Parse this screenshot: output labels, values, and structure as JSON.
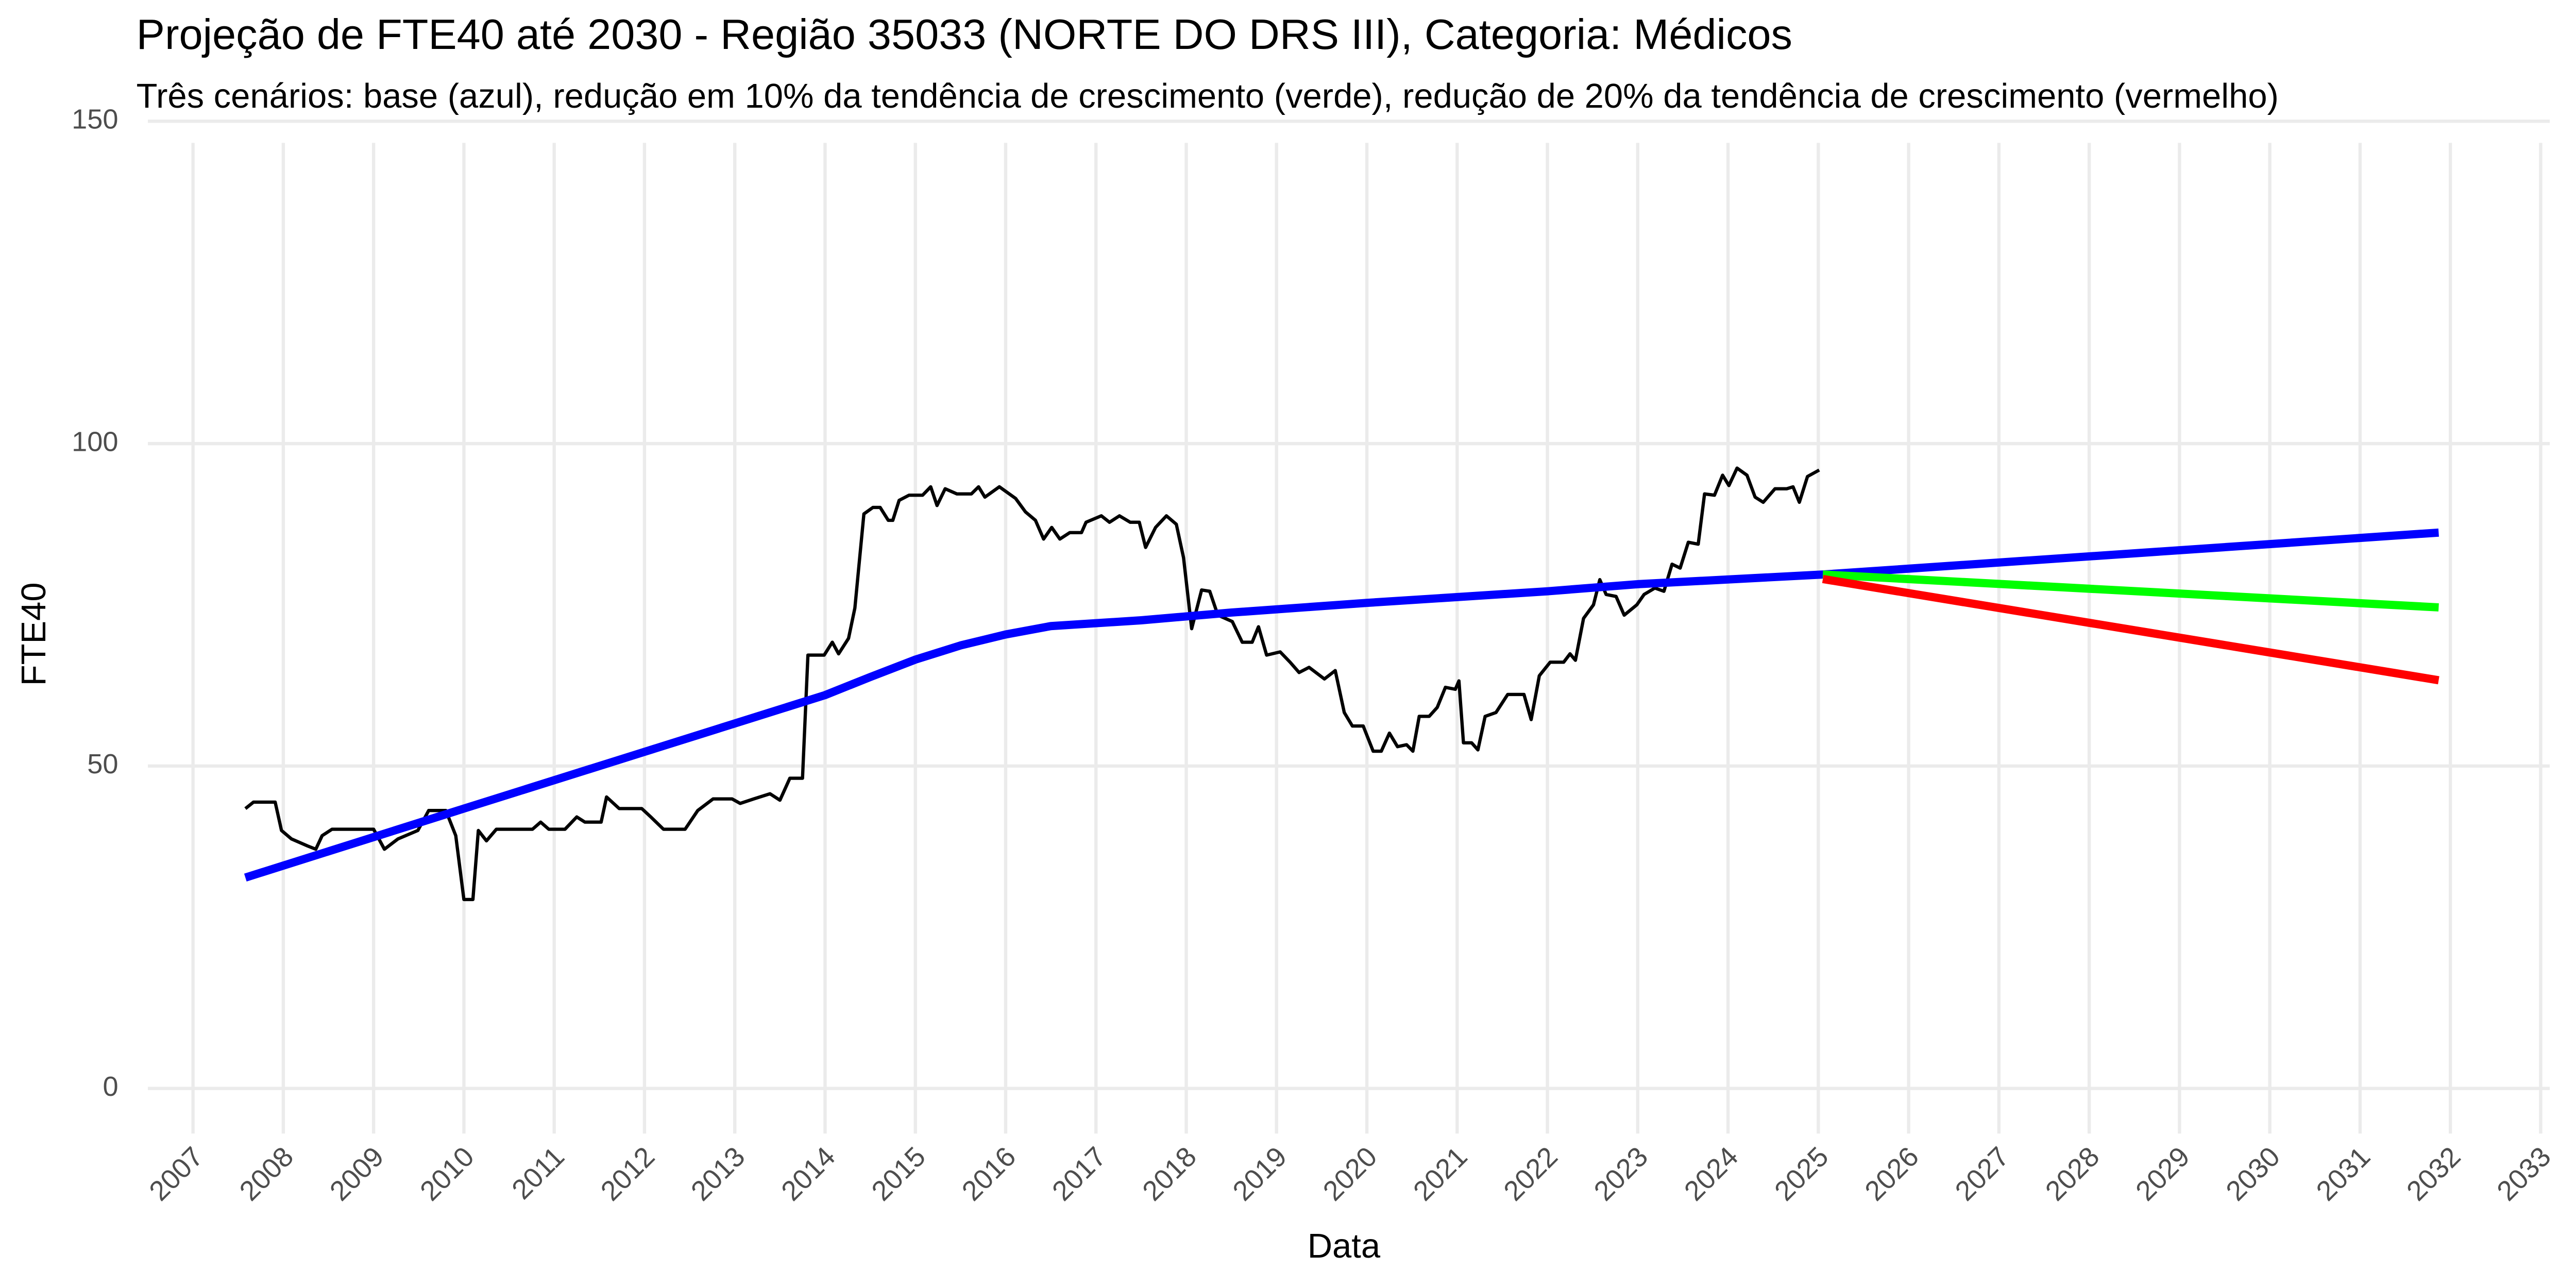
{
  "chart_data": {
    "type": "line",
    "title": "Projeção de FTE40 até 2030 - Região 35033 (NORTE DO DRS III), Categoria: Médicos",
    "subtitle": "Três cenários: base (azul), redução em 10% da tendência de crescimento (verde), redução de 20% da tendência de crescimento (vermelho)",
    "x_label": "Data",
    "y_label": "FTE40",
    "xlim": [
      2006.5,
      2033.1
    ],
    "ylim": [
      -7,
      153
    ],
    "xticks": [
      2007,
      2008,
      2009,
      2010,
      2011,
      2012,
      2013,
      2014,
      2015,
      2016,
      2017,
      2018,
      2019,
      2020,
      2021,
      2022,
      2023,
      2024,
      2025,
      2026,
      2027,
      2028,
      2029,
      2030,
      2031,
      2032,
      2033
    ],
    "yticks": [
      0,
      50,
      100,
      150
    ],
    "grid": true,
    "series": [
      {
        "color": "#000000",
        "x": [
          2007.58,
          2007.67,
          2007.91,
          2007.98,
          2008.09,
          2008.27,
          2008.36,
          2008.43,
          2008.54,
          2009.0,
          2009.12,
          2009.27,
          2009.49,
          2009.61,
          2009.8,
          2009.91,
          2010.0,
          2010.1,
          2010.16,
          2010.25,
          2010.36,
          2010.76,
          2010.85,
          2010.94,
          2011.12,
          2011.25,
          2011.34,
          2011.52,
          2011.58,
          2011.72,
          2011.97,
          2012.07,
          2012.21,
          2012.45,
          2012.59,
          2012.76,
          2012.97,
          2013.06,
          2013.21,
          2013.39,
          2013.5,
          2013.61,
          2013.75,
          2013.81,
          2013.99,
          2014.08,
          2014.15,
          2014.26,
          2014.33,
          2014.43,
          2014.53,
          2014.61,
          2014.7,
          2014.75,
          2014.82,
          2014.93,
          2015.08,
          2015.17,
          2015.24,
          2015.33,
          2015.46,
          2015.62,
          2015.7,
          2015.77,
          2015.93,
          2016.11,
          2016.22,
          2016.33,
          2016.42,
          2016.51,
          2016.6,
          2016.71,
          2016.84,
          2016.89,
          2017.06,
          2017.15,
          2017.26,
          2017.38,
          2017.48,
          2017.55,
          2017.66,
          2017.78,
          2017.89,
          2017.97,
          2018.06,
          2018.17,
          2018.26,
          2018.35,
          2018.51,
          2018.62,
          2018.73,
          2018.8,
          2018.89,
          2019.04,
          2019.15,
          2019.25,
          2019.36,
          2019.53,
          2019.65,
          2019.75,
          2019.84,
          2019.96,
          2020.07,
          2020.16,
          2020.25,
          2020.34,
          2020.44,
          2020.51,
          2020.58,
          2020.69,
          2020.78,
          2020.87,
          2020.98,
          2021.02,
          2021.07,
          2021.16,
          2021.23,
          2021.31,
          2021.43,
          2021.56,
          2021.74,
          2021.82,
          2021.91,
          2022.03,
          2022.18,
          2022.25,
          2022.31,
          2022.4,
          2022.51,
          2022.58,
          2022.65,
          2022.76,
          2022.85,
          2022.99,
          2023.07,
          2023.19,
          2023.29,
          2023.38,
          2023.47,
          2023.56,
          2023.67,
          2023.74,
          2023.85,
          2023.94,
          2024.01,
          2024.1,
          2024.21,
          2024.3,
          2024.39,
          2024.52,
          2024.65,
          2024.72,
          2024.79,
          2024.88,
          2025.01
        ],
        "values": [
          43.4,
          44.4,
          44.4,
          40.0,
          38.7,
          37.6,
          37.1,
          39.2,
          40.2,
          40.2,
          37.1,
          38.7,
          40.0,
          43.1,
          43.1,
          39.2,
          29.3,
          29.3,
          40.0,
          38.4,
          40.2,
          40.2,
          41.3,
          40.2,
          40.2,
          42.1,
          41.3,
          41.3,
          45.2,
          43.4,
          43.4,
          42.1,
          40.2,
          40.2,
          43.1,
          44.9,
          44.9,
          44.2,
          44.9,
          45.7,
          44.7,
          48.1,
          48.1,
          67.2,
          67.2,
          69.2,
          67.4,
          69.8,
          74.5,
          89.1,
          90.1,
          90.1,
          88.1,
          88.1,
          91.2,
          92.0,
          92.0,
          93.3,
          90.4,
          93.0,
          92.2,
          92.2,
          93.3,
          91.7,
          93.3,
          91.5,
          89.4,
          88.1,
          85.2,
          87.0,
          85.2,
          86.2,
          86.2,
          87.8,
          88.8,
          87.8,
          88.8,
          87.8,
          87.8,
          83.9,
          87.0,
          88.8,
          87.5,
          82.3,
          71.3,
          77.3,
          77.1,
          73.4,
          72.4,
          69.2,
          69.2,
          71.6,
          67.2,
          67.7,
          66.1,
          64.5,
          65.3,
          63.5,
          64.8,
          58.3,
          56.2,
          56.2,
          52.3,
          52.3,
          55.1,
          53.0,
          53.3,
          52.3,
          57.7,
          57.7,
          59.1,
          62.2,
          61.9,
          63.2,
          53.6,
          53.6,
          52.5,
          57.7,
          58.3,
          61.1,
          61.1,
          57.2,
          64.0,
          66.1,
          66.1,
          67.4,
          66.4,
          72.9,
          75.0,
          78.9,
          76.6,
          76.3,
          73.4,
          75.0,
          76.6,
          77.6,
          77.1,
          81.3,
          80.7,
          84.7,
          84.4,
          92.2,
          92.0,
          95.1,
          93.5,
          96.2,
          95.1,
          91.7,
          90.9,
          93.0,
          93.0,
          93.3,
          90.9,
          94.9,
          95.9
        ]
      },
      {
        "color": "#0000ff",
        "x": [
          2007.58,
          2010.0,
          2012.0,
          2014.0,
          2014.5,
          2015.0,
          2015.5,
          2016.0,
          2016.5,
          2017.5,
          2018.5,
          2020.0,
          2022.0,
          2023.0,
          2025.05,
          2031.87
        ],
        "values": [
          32.7,
          43.4,
          52.2,
          61.0,
          63.8,
          66.5,
          68.7,
          70.4,
          71.7,
          72.6,
          73.8,
          75.3,
          77.1,
          78.2,
          79.7,
          86.2
        ]
      },
      {
        "color": "#00ff00",
        "x": [
          2025.05,
          2031.87
        ],
        "values": [
          79.7,
          74.6
        ]
      },
      {
        "color": "#ff0000",
        "x": [
          2025.05,
          2031.87
        ],
        "values": [
          79.0,
          63.3
        ]
      }
    ]
  }
}
